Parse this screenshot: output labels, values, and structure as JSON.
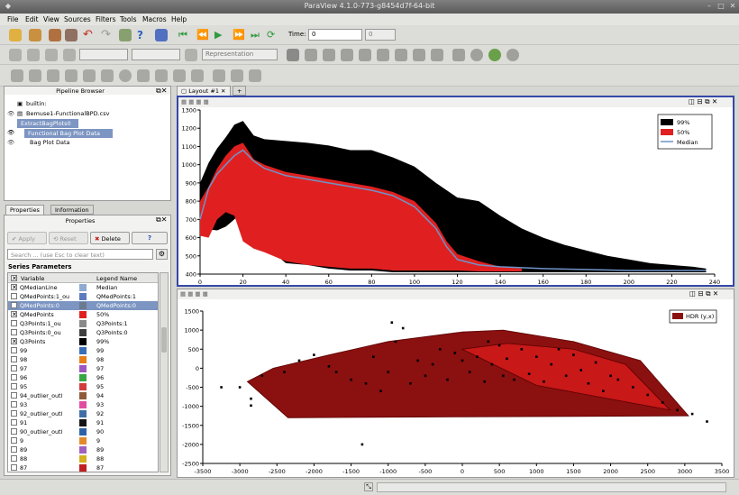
{
  "window": {
    "title": "ParaView 4.1.0-773-g8454d7f-64-bit"
  },
  "menu": [
    "File",
    "Edit",
    "View",
    "Sources",
    "Filters",
    "Tools",
    "Macros",
    "Help"
  ],
  "toolbar": {
    "time_label": "Time:",
    "time_value": "0",
    "time_index": "0",
    "representation": "Representation"
  },
  "pipeline": {
    "title": "Pipeline Browser",
    "items": [
      "builtin:",
      "Bemuse1-FunctionalBPD.csv",
      "ExtractBagPlots0",
      "Functional Bag Plot Data",
      "Bag Plot Data"
    ]
  },
  "properties": {
    "tabs": [
      "Properties",
      "Information"
    ],
    "title": "Properties",
    "apply": "Apply",
    "reset": "Reset",
    "delete": "Delete",
    "help": "?",
    "search_placeholder": "Search ... (use Esc to clear text)",
    "section": "Series Parameters",
    "col_variable": "Variable",
    "col_legend": "Legend Name",
    "rows": [
      {
        "v": "QMedianLine",
        "l": "Median",
        "c": "#8eaad0",
        "chk": true,
        "sel": false
      },
      {
        "v": "QMedPoints:1_ou",
        "l": "QMedPoints:1",
        "c": "#5b7bbf",
        "chk": false,
        "sel": false
      },
      {
        "v": "QMedPoints:0",
        "l": "QMedPoints:0",
        "c": "#6a7a90",
        "chk": false,
        "sel": true
      },
      {
        "v": "QMedPoints",
        "l": "50%",
        "c": "#e02020",
        "chk": true,
        "sel": false
      },
      {
        "v": "Q3Points:1_ou",
        "l": "Q3Points:1",
        "c": "#8a8a8a",
        "chk": false,
        "sel": false
      },
      {
        "v": "Q3Points:0_ou",
        "l": "Q3Points:0",
        "c": "#3f3f3f",
        "chk": false,
        "sel": false
      },
      {
        "v": "Q3Points",
        "l": "99%",
        "c": "#000000",
        "chk": true,
        "sel": false
      },
      {
        "v": "99",
        "l": "99",
        "c": "#3a6fb8",
        "chk": false,
        "sel": false
      },
      {
        "v": "98",
        "l": "98",
        "c": "#e87f1a",
        "chk": false,
        "sel": false
      },
      {
        "v": "97",
        "l": "97",
        "c": "#9c58c0",
        "chk": false,
        "sel": false
      },
      {
        "v": "96",
        "l": "96",
        "c": "#3aa544",
        "chk": false,
        "sel": false
      },
      {
        "v": "95",
        "l": "95",
        "c": "#d23c3c",
        "chk": false,
        "sel": false
      },
      {
        "v": "94_outlier_outl",
        "l": "94",
        "c": "#8e5a3a",
        "chk": false,
        "sel": false
      },
      {
        "v": "93",
        "l": "93",
        "c": "#e04da0",
        "chk": false,
        "sel": false
      },
      {
        "v": "92_outlier_outl",
        "l": "92",
        "c": "#3f6fa6",
        "chk": false,
        "sel": false
      },
      {
        "v": "91",
        "l": "91",
        "c": "#151515",
        "chk": false,
        "sel": false
      },
      {
        "v": "90_outlier_outl",
        "l": "90",
        "c": "#2d63a6",
        "chk": false,
        "sel": false
      },
      {
        "v": "9",
        "l": "9",
        "c": "#e38a2a",
        "chk": false,
        "sel": false
      },
      {
        "v": "89",
        "l": "89",
        "c": "#a060c0",
        "chk": false,
        "sel": false
      },
      {
        "v": "88",
        "l": "88",
        "c": "#d5b020",
        "chk": false,
        "sel": false
      },
      {
        "v": "87",
        "l": "87",
        "c": "#c02020",
        "chk": false,
        "sel": false
      }
    ]
  },
  "layout": {
    "tab_label": "Layout #1",
    "add_label": "+"
  },
  "chart_data": [
    {
      "type": "area",
      "xlim": [
        0,
        240
      ],
      "ylim": [
        400,
        1300
      ],
      "xticks": [
        "0",
        "20",
        "40",
        "60",
        "80",
        "100",
        "120",
        "140",
        "160",
        "180",
        "200",
        "220",
        "240"
      ],
      "yticks": [
        "400",
        "500",
        "600",
        "700",
        "800",
        "900",
        "1000",
        "1100",
        "1200",
        "1300"
      ],
      "legend": {
        "placement": "top-right",
        "entries": [
          {
            "name": "99%",
            "color": "#000000"
          },
          {
            "name": "50%",
            "color": "#e02020"
          },
          {
            "name": "Median",
            "color": "#6f93c7"
          }
        ]
      },
      "series": [
        {
          "name": "99%",
          "color": "#000000",
          "x": [
            0,
            4,
            8,
            12,
            16,
            20,
            25,
            30,
            40,
            50,
            60,
            70,
            80,
            90,
            100,
            110,
            120,
            130,
            140,
            150,
            160,
            170,
            180,
            190,
            200,
            210,
            220,
            230,
            236
          ],
          "upper": [
            900,
            1010,
            1090,
            1150,
            1220,
            1240,
            1160,
            1140,
            1130,
            1120,
            1105,
            1080,
            1080,
            1040,
            990,
            900,
            820,
            800,
            720,
            650,
            600,
            560,
            530,
            500,
            480,
            460,
            450,
            440,
            430
          ],
          "lower": [
            650,
            645,
            640,
            660,
            700,
            750,
            650,
            560,
            460,
            450,
            430,
            420,
            420,
            410,
            410,
            410,
            410,
            410,
            410,
            410,
            410,
            410,
            410,
            410,
            410,
            410,
            410,
            410,
            410
          ]
        },
        {
          "name": "50%",
          "color": "#e02020",
          "x": [
            0,
            4,
            8,
            12,
            16,
            20,
            25,
            30,
            40,
            50,
            60,
            70,
            80,
            90,
            100,
            110,
            115,
            120,
            130,
            140,
            150
          ],
          "upper": [
            800,
            880,
            980,
            1050,
            1100,
            1120,
            1030,
            1000,
            960,
            940,
            920,
            900,
            880,
            850,
            800,
            680,
            580,
            510,
            470,
            440,
            430
          ],
          "lower": [
            610,
            600,
            700,
            740,
            720,
            580,
            540,
            520,
            470,
            450,
            440,
            430,
            430,
            420,
            420,
            420,
            420,
            420,
            415,
            415,
            415
          ]
        },
        {
          "name": "Median",
          "color": "#6f93c7",
          "x": [
            0,
            4,
            8,
            12,
            16,
            20,
            25,
            30,
            40,
            50,
            60,
            70,
            80,
            90,
            100,
            110,
            115,
            120,
            130,
            140,
            160,
            180,
            200,
            220,
            236
          ],
          "y": [
            700,
            870,
            950,
            1000,
            1050,
            1080,
            1020,
            980,
            940,
            920,
            900,
            880,
            860,
            830,
            770,
            650,
            550,
            480,
            450,
            440,
            430,
            425,
            420,
            420,
            420
          ]
        }
      ]
    },
    {
      "type": "scatter",
      "xlim": [
        -3500,
        3500
      ],
      "ylim": [
        -2500,
        1500
      ],
      "xticks": [
        "-3500",
        "-3000",
        "-2500",
        "-2000",
        "-1500",
        "-1000",
        "-500",
        "0",
        "500",
        "1000",
        "1500",
        "2000",
        "2500",
        "3000",
        "3500"
      ],
      "yticks": [
        "-2500",
        "-2000",
        "-1500",
        "-1000",
        "-500",
        "0",
        "500",
        "1000",
        "1500"
      ],
      "legend": {
        "placement": "top-right",
        "entries": [
          {
            "name": "HDR (y,x)",
            "color": "#8b1010"
          }
        ]
      },
      "regions": [
        {
          "name": "outer",
          "color": "#8b1010",
          "points": [
            [
              -2900,
              -350
            ],
            [
              -2550,
              0
            ],
            [
              -1800,
              350
            ],
            [
              -1000,
              700
            ],
            [
              0,
              950
            ],
            [
              550,
              1000
            ],
            [
              1500,
              700
            ],
            [
              2400,
              200
            ],
            [
              3050,
              -1250
            ],
            [
              -2350,
              -1300
            ]
          ]
        },
        {
          "name": "inner",
          "color": "#c81818",
          "points": [
            [
              0,
              500
            ],
            [
              600,
              650
            ],
            [
              1500,
              500
            ],
            [
              2200,
              100
            ],
            [
              2800,
              -1100
            ],
            [
              1000,
              -450
            ]
          ]
        }
      ],
      "points": [
        [
          -2850,
          -800
        ],
        [
          -3000,
          -500
        ],
        [
          -2700,
          -200
        ],
        [
          -2400,
          -100
        ],
        [
          -2200,
          200
        ],
        [
          -2000,
          350
        ],
        [
          -1800,
          50
        ],
        [
          -1700,
          -100
        ],
        [
          -1500,
          -300
        ],
        [
          -1300,
          -400
        ],
        [
          -1200,
          300
        ],
        [
          -1100,
          -600
        ],
        [
          -1000,
          -100
        ],
        [
          -900,
          700
        ],
        [
          -950,
          1200
        ],
        [
          -800,
          1050
        ],
        [
          -700,
          -400
        ],
        [
          -600,
          200
        ],
        [
          -500,
          -200
        ],
        [
          -400,
          100
        ],
        [
          -300,
          500
        ],
        [
          -200,
          -300
        ],
        [
          -100,
          400
        ],
        [
          0,
          200
        ],
        [
          100,
          -100
        ],
        [
          200,
          300
        ],
        [
          300,
          -350
        ],
        [
          350,
          700
        ],
        [
          400,
          100
        ],
        [
          500,
          600
        ],
        [
          550,
          -200
        ],
        [
          600,
          250
        ],
        [
          700,
          -300
        ],
        [
          800,
          500
        ],
        [
          900,
          -150
        ],
        [
          1000,
          300
        ],
        [
          1100,
          -350
        ],
        [
          1200,
          100
        ],
        [
          1300,
          500
        ],
        [
          1400,
          -200
        ],
        [
          1500,
          350
        ],
        [
          1600,
          -50
        ],
        [
          1700,
          -400
        ],
        [
          1800,
          150
        ],
        [
          1900,
          -600
        ],
        [
          2000,
          -200
        ],
        [
          2100,
          -300
        ],
        [
          2300,
          -500
        ],
        [
          2500,
          -700
        ],
        [
          2700,
          -900
        ],
        [
          2900,
          -1100
        ],
        [
          3100,
          -1200
        ],
        [
          3300,
          -1400
        ],
        [
          -1350,
          -2000
        ],
        [
          -3250,
          -500
        ],
        [
          -2850,
          -980
        ]
      ]
    }
  ]
}
